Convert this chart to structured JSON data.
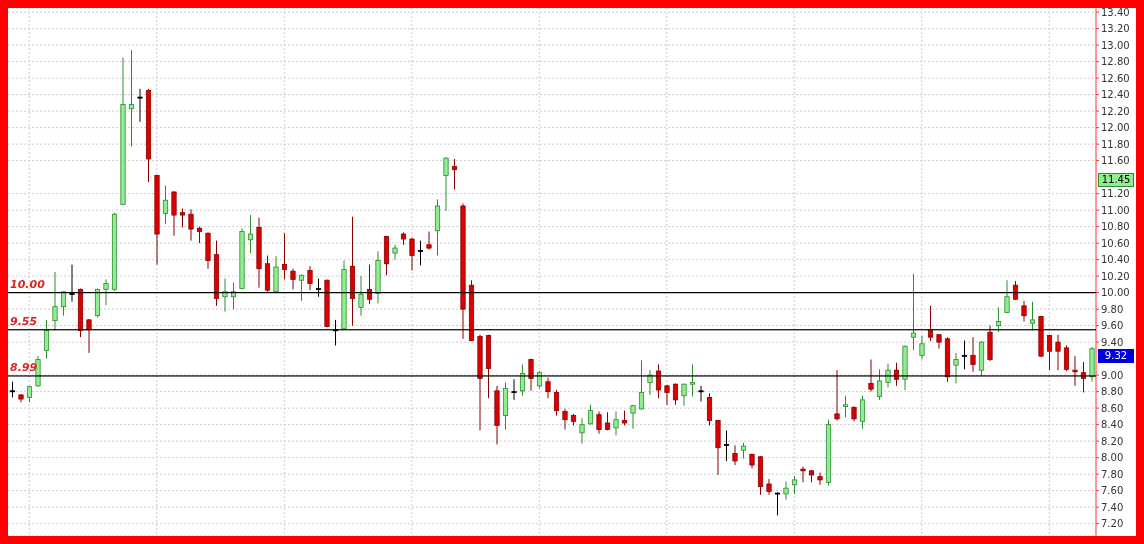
{
  "chart_data": {
    "type": "candlestick",
    "categories": [
      null,
      null,
      null,
      null,
      null,
      null,
      null,
      null,
      null,
      null,
      null,
      null,
      null,
      null,
      null,
      null,
      null,
      null,
      null,
      null,
      null,
      null,
      null,
      null,
      null,
      null,
      null,
      null,
      null,
      null,
      null,
      null,
      null,
      null,
      null,
      null,
      null,
      null,
      null,
      null,
      null,
      null,
      null,
      null,
      null,
      null,
      null,
      null,
      null,
      null,
      null,
      null,
      null,
      null,
      null,
      null,
      null,
      null,
      null,
      null,
      null,
      null,
      null,
      null,
      null,
      null,
      null,
      null,
      null,
      null,
      null,
      null,
      null,
      null,
      null,
      null,
      null,
      null,
      null,
      null,
      null,
      null,
      null,
      null,
      null,
      null,
      null,
      null,
      null,
      null,
      null,
      null,
      null,
      null,
      null,
      null,
      null,
      null,
      null,
      null,
      null,
      null,
      null,
      null,
      null,
      null,
      null,
      null,
      null,
      null,
      null,
      null,
      null,
      null,
      null,
      null,
      null,
      null,
      null,
      null,
      null,
      null,
      null,
      null,
      null,
      null,
      null,
      null
    ],
    "ohlc": [
      [
        8.81,
        8.92,
        8.73,
        8.81
      ],
      [
        8.76,
        8.77,
        8.67,
        8.71
      ],
      [
        8.73,
        8.87,
        8.67,
        8.86
      ],
      [
        8.87,
        9.23,
        8.86,
        9.19
      ],
      [
        9.3,
        9.67,
        9.2,
        9.54
      ],
      [
        9.66,
        10.25,
        9.54,
        9.83
      ],
      [
        9.83,
        10.01,
        9.72,
        10.01
      ],
      [
        9.99,
        10.34,
        9.89,
        9.99
      ],
      [
        10.04,
        10.05,
        9.46,
        9.54
      ],
      [
        9.67,
        9.68,
        9.27,
        9.55
      ],
      [
        9.72,
        10.05,
        9.7,
        10.04
      ],
      [
        10.04,
        10.16,
        9.85,
        10.11
      ],
      [
        10.04,
        10.97,
        10.02,
        10.95
      ],
      [
        11.07,
        12.85,
        11.07,
        12.28
      ],
      [
        12.23,
        12.94,
        11.77,
        12.28
      ],
      [
        12.37,
        12.47,
        12.07,
        12.37
      ],
      [
        12.45,
        12.47,
        11.34,
        11.62
      ],
      [
        11.42,
        11.43,
        10.34,
        10.71
      ],
      [
        10.96,
        11.3,
        10.83,
        11.12
      ],
      [
        11.22,
        11.23,
        10.69,
        10.94
      ],
      [
        10.97,
        11.02,
        10.79,
        10.94
      ],
      [
        10.95,
        11.01,
        10.63,
        10.77
      ],
      [
        10.78,
        10.8,
        10.6,
        10.74
      ],
      [
        10.72,
        10.73,
        10.29,
        10.39
      ],
      [
        10.46,
        10.63,
        9.84,
        9.93
      ],
      [
        9.95,
        10.17,
        9.77,
        10.01
      ],
      [
        9.95,
        10.12,
        9.8,
        10.01
      ],
      [
        10.05,
        10.78,
        10.04,
        10.74
      ],
      [
        10.64,
        10.94,
        10.48,
        10.71
      ],
      [
        10.79,
        10.91,
        10.06,
        10.29
      ],
      [
        10.35,
        10.45,
        10.01,
        10.03
      ],
      [
        10.01,
        10.44,
        10.0,
        10.31
      ],
      [
        10.34,
        10.72,
        10.16,
        10.28
      ],
      [
        10.26,
        10.29,
        10.04,
        10.16
      ],
      [
        10.15,
        10.22,
        9.9,
        10.21
      ],
      [
        10.27,
        10.32,
        10.03,
        10.11
      ],
      [
        10.05,
        10.17,
        9.95,
        10.05
      ],
      [
        10.15,
        10.16,
        9.58,
        9.59
      ],
      [
        9.55,
        9.67,
        9.36,
        9.55
      ],
      [
        9.56,
        10.39,
        9.55,
        10.28
      ],
      [
        10.32,
        10.92,
        9.6,
        9.93
      ],
      [
        9.82,
        10.2,
        9.72,
        9.98
      ],
      [
        10.04,
        10.34,
        9.86,
        9.92
      ],
      [
        9.99,
        10.5,
        9.87,
        10.39
      ],
      [
        10.68,
        10.69,
        10.21,
        10.35
      ],
      [
        10.48,
        10.58,
        10.4,
        10.54
      ],
      [
        10.71,
        10.73,
        10.58,
        10.65
      ],
      [
        10.65,
        10.66,
        10.27,
        10.45
      ],
      [
        10.51,
        10.63,
        10.33,
        10.51
      ],
      [
        10.58,
        10.74,
        10.52,
        10.54
      ],
      [
        10.75,
        11.13,
        10.45,
        11.05
      ],
      [
        11.42,
        11.64,
        10.99,
        11.63
      ],
      [
        11.53,
        11.62,
        11.25,
        11.49
      ],
      [
        11.05,
        11.08,
        9.44,
        9.8
      ],
      [
        10.09,
        10.15,
        9.41,
        9.42
      ],
      [
        9.47,
        9.49,
        8.33,
        8.96
      ],
      [
        9.48,
        9.49,
        8.72,
        9.08
      ],
      [
        8.81,
        8.87,
        8.16,
        8.39
      ],
      [
        8.51,
        8.91,
        8.34,
        8.84
      ],
      [
        8.8,
        8.95,
        8.7,
        8.8
      ],
      [
        8.81,
        9.13,
        8.75,
        9.02
      ],
      [
        9.19,
        9.2,
        8.81,
        8.96
      ],
      [
        8.87,
        9.05,
        8.84,
        9.03
      ],
      [
        8.92,
        8.97,
        8.72,
        8.8
      ],
      [
        8.79,
        8.82,
        8.51,
        8.57
      ],
      [
        8.56,
        8.59,
        8.34,
        8.46
      ],
      [
        8.51,
        8.53,
        8.39,
        8.44
      ],
      [
        8.3,
        8.48,
        8.17,
        8.4
      ],
      [
        8.41,
        8.64,
        8.4,
        8.57
      ],
      [
        8.52,
        8.56,
        8.29,
        8.34
      ],
      [
        8.42,
        8.55,
        8.33,
        8.34
      ],
      [
        8.36,
        8.56,
        8.27,
        8.46
      ],
      [
        8.45,
        8.57,
        8.39,
        8.42
      ],
      [
        8.54,
        8.64,
        8.35,
        8.63
      ],
      [
        8.59,
        9.18,
        8.58,
        8.79
      ],
      [
        8.91,
        9.06,
        8.76,
        9.0
      ],
      [
        9.05,
        9.13,
        8.72,
        8.82
      ],
      [
        8.87,
        8.88,
        8.64,
        8.79
      ],
      [
        8.89,
        8.9,
        8.64,
        8.7
      ],
      [
        8.75,
        8.9,
        8.63,
        8.89
      ],
      [
        8.89,
        9.13,
        8.74,
        8.91
      ],
      [
        8.81,
        8.87,
        8.68,
        8.81
      ],
      [
        8.73,
        8.78,
        8.39,
        8.45
      ],
      [
        8.45,
        8.46,
        7.79,
        8.12
      ],
      [
        8.16,
        8.33,
        7.96,
        8.16
      ],
      [
        8.05,
        8.15,
        7.91,
        7.96
      ],
      [
        8.09,
        8.18,
        7.99,
        8.14
      ],
      [
        8.04,
        8.05,
        7.87,
        7.91
      ],
      [
        8.01,
        8.02,
        7.55,
        7.65
      ],
      [
        7.68,
        7.74,
        7.55,
        7.59
      ],
      [
        7.57,
        7.58,
        7.3,
        7.57
      ],
      [
        7.56,
        7.71,
        7.49,
        7.63
      ],
      [
        7.67,
        7.78,
        7.56,
        7.73
      ],
      [
        7.86,
        7.89,
        7.7,
        7.84
      ],
      [
        7.84,
        7.85,
        7.7,
        7.79
      ],
      [
        7.77,
        7.82,
        7.67,
        7.73
      ],
      [
        7.7,
        8.46,
        7.66,
        8.4
      ],
      [
        8.53,
        9.06,
        8.45,
        8.47
      ],
      [
        8.62,
        8.75,
        8.49,
        8.64
      ],
      [
        8.61,
        8.62,
        8.44,
        8.47
      ],
      [
        8.44,
        8.75,
        8.35,
        8.7
      ],
      [
        8.9,
        9.19,
        8.8,
        8.83
      ],
      [
        8.74,
        9.07,
        8.7,
        8.93
      ],
      [
        8.91,
        9.14,
        8.85,
        9.06
      ],
      [
        9.06,
        9.15,
        8.87,
        8.95
      ],
      [
        8.95,
        9.36,
        8.82,
        9.35
      ],
      [
        9.46,
        10.23,
        9.3,
        9.51
      ],
      [
        9.24,
        9.48,
        9.19,
        9.38
      ],
      [
        9.55,
        9.84,
        9.41,
        9.46
      ],
      [
        9.49,
        9.5,
        9.32,
        9.4
      ],
      [
        9.44,
        9.46,
        8.92,
        8.98
      ],
      [
        9.12,
        9.27,
        8.9,
        9.19
      ],
      [
        9.24,
        9.42,
        9.07,
        9.24
      ],
      [
        9.24,
        9.46,
        9.04,
        9.13
      ],
      [
        9.06,
        9.41,
        8.99,
        9.4
      ],
      [
        9.52,
        9.6,
        9.17,
        9.19
      ],
      [
        9.6,
        9.82,
        9.52,
        9.65
      ],
      [
        9.76,
        10.15,
        9.75,
        9.95
      ],
      [
        10.09,
        10.14,
        9.91,
        9.92
      ],
      [
        9.84,
        9.9,
        9.65,
        9.72
      ],
      [
        9.63,
        9.89,
        9.54,
        9.67
      ],
      [
        9.71,
        9.72,
        9.22,
        9.23
      ],
      [
        9.48,
        9.49,
        9.06,
        9.29
      ],
      [
        9.4,
        9.49,
        9.06,
        9.29
      ],
      [
        9.33,
        9.36,
        9.05,
        9.07
      ],
      [
        9.06,
        9.23,
        8.87,
        9.04
      ],
      [
        9.03,
        9.16,
        8.79,
        8.96
      ],
      [
        8.98,
        9.34,
        8.92,
        9.32
      ]
    ],
    "ylim": [
      7.05,
      13.45
    ],
    "yticks": [
      {
        "value": 7.2,
        "label": "7.20"
      },
      {
        "value": 7.4,
        "label": "7.40"
      },
      {
        "value": 7.6,
        "label": "7.60"
      },
      {
        "value": 7.8,
        "label": "7.80"
      },
      {
        "value": 8.0,
        "label": "8.00"
      },
      {
        "value": 8.2,
        "label": "8.20"
      },
      {
        "value": 8.4,
        "label": "8.40"
      },
      {
        "value": 8.6,
        "label": "8.60"
      },
      {
        "value": 8.8,
        "label": "8.80"
      },
      {
        "value": 9.0,
        "label": "9.00"
      },
      {
        "value": 9.4,
        "label": "9.40"
      },
      {
        "value": 9.6,
        "label": "9.60"
      },
      {
        "value": 9.8,
        "label": "9.80"
      },
      {
        "value": 10.0,
        "label": "10.00"
      },
      {
        "value": 10.2,
        "label": "10.20"
      },
      {
        "value": 10.4,
        "label": "10.40"
      },
      {
        "value": 10.6,
        "label": "10.60"
      },
      {
        "value": 10.8,
        "label": "10.80"
      },
      {
        "value": 11.0,
        "label": "11.00"
      },
      {
        "value": 11.2,
        "label": "11.20"
      },
      {
        "value": 11.6,
        "label": "11.60"
      },
      {
        "value": 11.8,
        "label": "11.80"
      },
      {
        "value": 12.0,
        "label": "12.00"
      },
      {
        "value": 12.2,
        "label": "12.20"
      },
      {
        "value": 12.4,
        "label": "12.40"
      },
      {
        "value": 12.6,
        "label": "12.60"
      },
      {
        "value": 12.8,
        "label": "12.80"
      },
      {
        "value": 13.0,
        "label": "13.00"
      },
      {
        "value": 13.2,
        "label": "13.20"
      },
      {
        "value": 13.4,
        "label": "13.40"
      }
    ],
    "grid": true,
    "tick_labels": "y",
    "ref_lines": [
      {
        "axis": "y",
        "value": 10.0,
        "label": "10.00",
        "color": "#000000"
      },
      {
        "axis": "y",
        "value": 9.55,
        "label": "9.55",
        "color": "#000000"
      },
      {
        "axis": "y",
        "value": 8.99,
        "label": "8.99",
        "color": "#000000"
      }
    ],
    "annotations": [
      "11.45",
      "9.32"
    ]
  }
}
